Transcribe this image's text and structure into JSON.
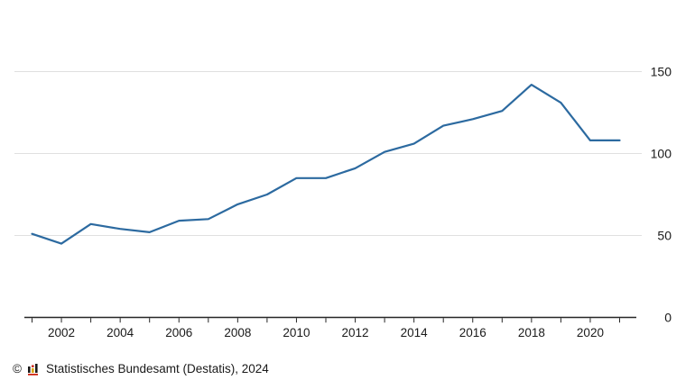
{
  "chart_data": {
    "type": "line",
    "title": "",
    "xlabel": "",
    "ylabel": "",
    "x": [
      2001,
      2002,
      2003,
      2004,
      2005,
      2006,
      2007,
      2008,
      2009,
      2010,
      2011,
      2012,
      2013,
      2014,
      2015,
      2016,
      2017,
      2018,
      2019,
      2020,
      2021
    ],
    "values": [
      51,
      45,
      57,
      54,
      52,
      59,
      60,
      69,
      75,
      85,
      85,
      91,
      101,
      106,
      117,
      121,
      126,
      142,
      131,
      108,
      108
    ],
    "ylim": [
      0,
      150
    ],
    "y_ticks": [
      0,
      50,
      100,
      150
    ],
    "x_tick_labels": [
      "2002",
      "2004",
      "2006",
      "2008",
      "2010",
      "2012",
      "2014",
      "2016",
      "2018",
      "2020"
    ],
    "y_axis_side": "right",
    "grid": true,
    "legend": "none",
    "line_color": "#2c6aa0"
  },
  "colors": {
    "grid": "#e0e0e0",
    "axis": "#262626",
    "tick_text": "#1a1a1a",
    "logo_black": "#1a1a1a",
    "logo_gold": "#d9a400",
    "logo_red": "#cc2211"
  },
  "footer": {
    "copyright_symbol": "©",
    "source": "Statistisches Bundesamt (Destatis), 2024"
  }
}
